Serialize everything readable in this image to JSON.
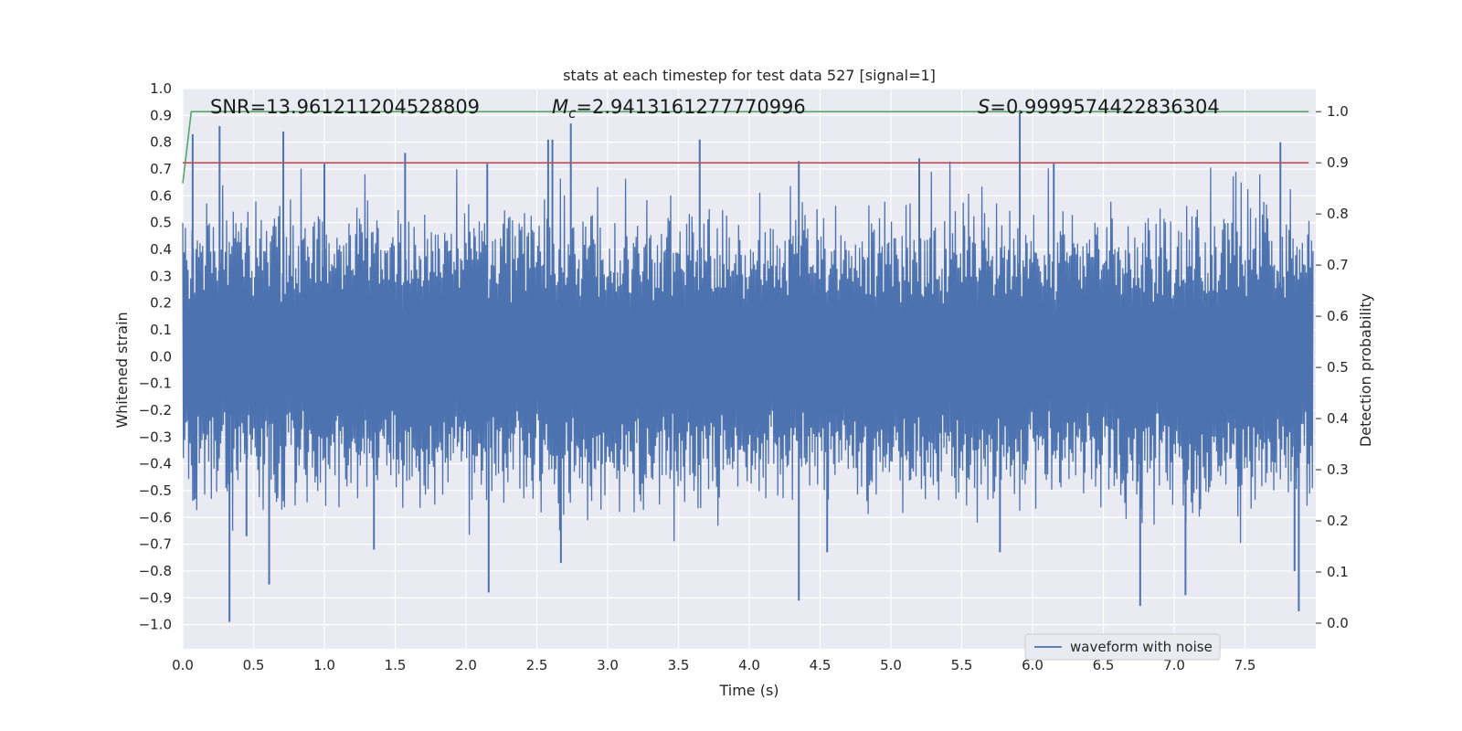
{
  "chart_data": {
    "type": "line",
    "title": "stats at each timestep for test data 527 [signal=1]",
    "xlabel": "Time (s)",
    "ylabel": "Whitened strain",
    "y2label": "Detection probability",
    "xlim": [
      0.0,
      8.0
    ],
    "ylim": [
      -1.09,
      1.0
    ],
    "y2lim": [
      -0.05,
      1.045
    ],
    "xticks": [
      0.0,
      0.5,
      1.0,
      1.5,
      2.0,
      2.5,
      3.0,
      3.5,
      4.0,
      4.5,
      5.0,
      5.5,
      6.0,
      6.5,
      7.0,
      7.5
    ],
    "xtick_labels": [
      "0.0",
      "0.5",
      "1.0",
      "1.5",
      "2.0",
      "2.5",
      "3.0",
      "3.5",
      "4.0",
      "4.5",
      "5.0",
      "5.5",
      "6.0",
      "6.5",
      "7.0",
      "7.5"
    ],
    "yticks": [
      1.0,
      0.9,
      0.8,
      0.7,
      0.6,
      0.5,
      0.4,
      0.3,
      0.2,
      0.1,
      0.0,
      -0.1,
      -0.2,
      -0.3,
      -0.4,
      -0.5,
      -0.6,
      -0.7,
      -0.8,
      -0.9,
      -1.0
    ],
    "ytick_labels": [
      "1.0",
      "0.9",
      "0.8",
      "0.7",
      "0.6",
      "0.5",
      "0.4",
      "0.3",
      "0.2",
      "0.1",
      "0.0",
      "−0.1",
      "−0.2",
      "−0.3",
      "−0.4",
      "−0.5",
      "−0.6",
      "−0.7",
      "−0.8",
      "−0.9",
      "−1.0"
    ],
    "y2ticks": [
      1.0,
      0.9,
      0.8,
      0.7,
      0.6,
      0.5,
      0.4,
      0.3,
      0.2,
      0.1,
      0.0
    ],
    "y2tick_labels": [
      "1.0",
      "0.9",
      "0.8",
      "0.7",
      "0.6",
      "0.5",
      "0.4",
      "0.3",
      "0.2",
      "0.1",
      "0.0"
    ],
    "grid": true,
    "legend_placement": "lower-right",
    "legend": [
      {
        "name": "waveform with noise",
        "color": "#4c72b0"
      }
    ],
    "annotations": {
      "snr": "SNR=13.961211204528809",
      "mc_symbol": "M",
      "mc_sub": "c",
      "mc_value": "=2.9413161277770996",
      "s_symbol": "S",
      "s_value": "=0.9999574422836304"
    },
    "series": [
      {
        "name": "waveform with noise",
        "axis": "left",
        "color": "#4c72b0",
        "envelope_typical": [
          -0.3,
          0.3
        ],
        "peaks": [
          {
            "x": 0.07,
            "y": 0.83
          },
          {
            "x": 0.26,
            "y": 0.86
          },
          {
            "x": 0.71,
            "y": 0.84
          },
          {
            "x": 1.57,
            "y": 0.76
          },
          {
            "x": 2.58,
            "y": 0.81
          },
          {
            "x": 2.61,
            "y": 0.81
          },
          {
            "x": 2.74,
            "y": 0.87
          },
          {
            "x": 3.65,
            "y": 0.81
          },
          {
            "x": 5.91,
            "y": 0.92
          },
          {
            "x": 5.2,
            "y": 0.74
          },
          {
            "x": 7.75,
            "y": 0.8
          },
          {
            "x": 1.0,
            "y": 0.72
          },
          {
            "x": 2.15,
            "y": 0.72
          },
          {
            "x": 4.35,
            "y": 0.73
          },
          {
            "x": 6.15,
            "y": 0.72
          },
          {
            "x": 0.33,
            "y": -0.99
          },
          {
            "x": 0.61,
            "y": -0.85
          },
          {
            "x": 2.16,
            "y": -0.88
          },
          {
            "x": 2.67,
            "y": -0.77
          },
          {
            "x": 4.35,
            "y": -0.91
          },
          {
            "x": 6.76,
            "y": -0.93
          },
          {
            "x": 7.08,
            "y": -0.89
          },
          {
            "x": 7.88,
            "y": -0.95
          },
          {
            "x": 0.45,
            "y": -0.67
          },
          {
            "x": 1.35,
            "y": -0.72
          },
          {
            "x": 4.55,
            "y": -0.73
          },
          {
            "x": 5.77,
            "y": -0.73
          },
          {
            "x": 7.85,
            "y": -0.8
          }
        ]
      },
      {
        "name": "",
        "axis": "right",
        "color": "#55a868",
        "points": [
          [
            0.0,
            0.86
          ],
          [
            0.03,
            0.93
          ],
          [
            0.06,
            1.0
          ],
          [
            0.1,
            1.0
          ],
          [
            7.95,
            1.0
          ]
        ]
      },
      {
        "name": "",
        "axis": "right",
        "color": "#c44e52",
        "points": [
          [
            0.0,
            0.9
          ],
          [
            7.95,
            0.9
          ]
        ]
      }
    ]
  }
}
